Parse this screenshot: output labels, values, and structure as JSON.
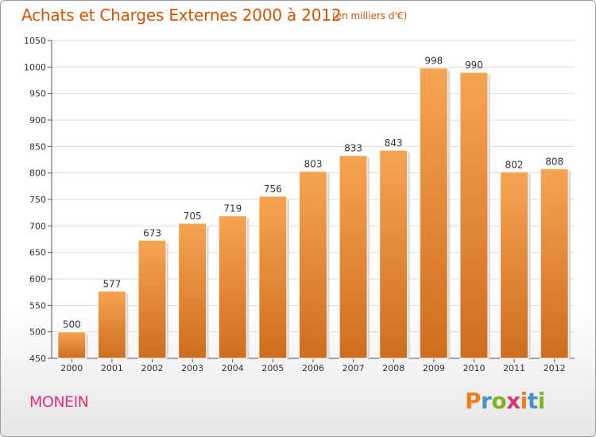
{
  "header": {
    "title": "Achats et Charges Externes 2000 à 2012",
    "subtitle": "(en milliers d'€)"
  },
  "footer": {
    "commune": "MONEIN",
    "logo": "Proxiti"
  },
  "colors": {
    "title": "#d35400",
    "bar_light": "#f6a452",
    "bar_dark": "#cf6d1f",
    "commune": "#e0317a",
    "logo_letters": [
      "#ee7f1b",
      "#4c90c9",
      "#7cb51f",
      "#e0317a",
      "#ee7f1b",
      "#4c90c9",
      "#7cb51f"
    ]
  },
  "chart_data": {
    "type": "bar",
    "categories": [
      "2000",
      "2001",
      "2002",
      "2003",
      "2004",
      "2005",
      "2006",
      "2007",
      "2008",
      "2009",
      "2010",
      "2011",
      "2012"
    ],
    "values": [
      500,
      577,
      673,
      705,
      719,
      756,
      803,
      833,
      843,
      998,
      990,
      802,
      808
    ],
    "ylim": [
      450,
      1050
    ],
    "yticks": [
      450,
      500,
      550,
      600,
      650,
      700,
      750,
      800,
      850,
      900,
      950,
      1000,
      1050
    ],
    "grid": true
  }
}
